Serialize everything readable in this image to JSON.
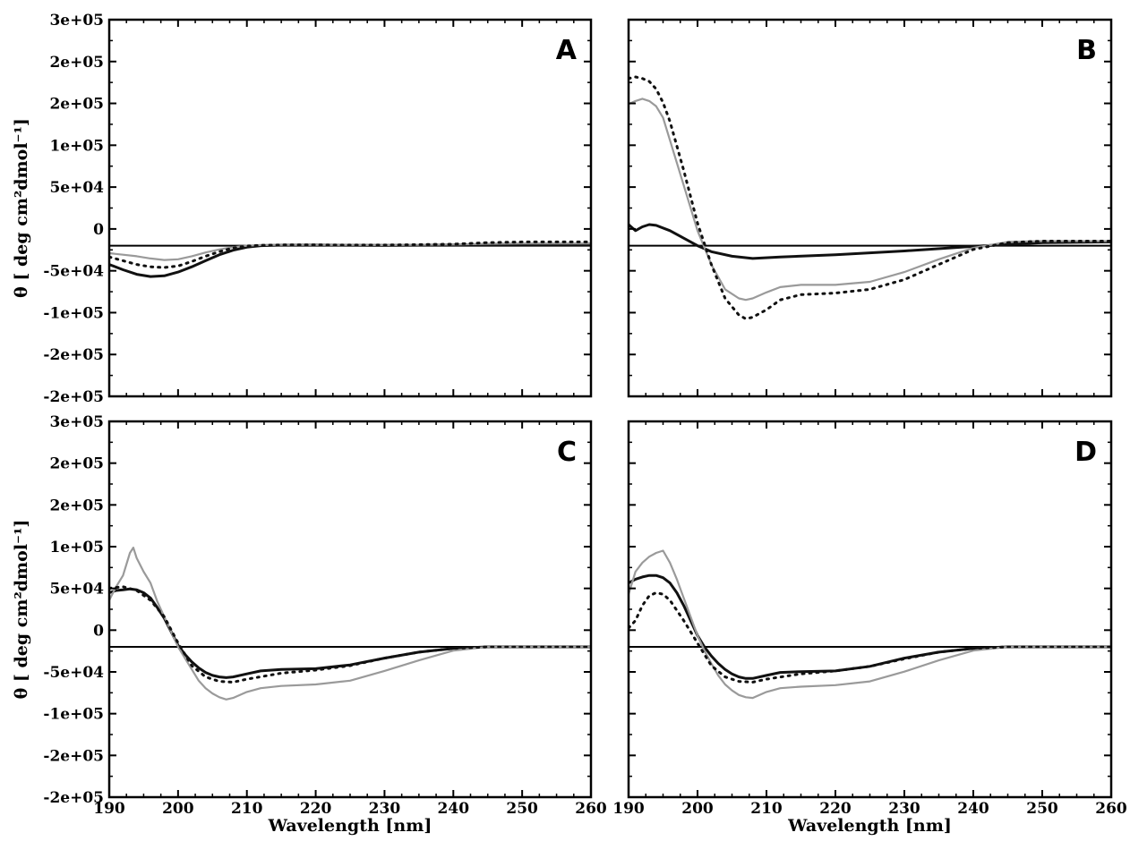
{
  "chart_data": [
    {
      "panel": "A",
      "type": "line",
      "xlim": [
        190,
        260
      ],
      "ylim": [
        -200000,
        300000
      ],
      "x_ticks": [
        "190",
        "200",
        "210",
        "220",
        "230",
        "240",
        "250",
        "260"
      ],
      "y_ticks": [
        "-2e+05",
        "-2e+05",
        "-1e+05",
        "-5e+04",
        "0",
        "5e+04",
        "1e+05",
        "2e+05",
        "2e+05",
        "3e+05"
      ],
      "xlabel": "",
      "ylabel": "θ [ deg cm²dmol⁻¹]",
      "series": [
        {
          "style": "solid-black",
          "x": [
            190,
            192,
            194,
            196,
            198,
            200,
            202,
            204,
            206,
            208,
            210,
            212,
            215,
            220,
            230,
            240,
            250,
            260
          ],
          "y": [
            -25000,
            -32000,
            -38000,
            -41000,
            -40000,
            -35000,
            -28000,
            -20000,
            -12000,
            -6000,
            -2000,
            0,
            800,
            1000,
            500,
            1000,
            1500,
            1200
          ]
        },
        {
          "style": "solid-gray",
          "x": [
            190,
            192,
            194,
            196,
            198,
            200,
            202,
            204,
            206,
            208,
            210,
            212,
            215,
            220,
            230,
            240,
            245,
            250,
            260
          ],
          "y": [
            -10000,
            -12000,
            -14000,
            -17000,
            -19000,
            -18000,
            -14000,
            -9000,
            -5000,
            -2000,
            0,
            800,
            1200,
            1200,
            800,
            1500,
            2500,
            3000,
            3000
          ]
        },
        {
          "style": "dotted-black",
          "x": [
            190,
            192,
            194,
            196,
            198,
            200,
            202,
            204,
            206,
            208,
            210,
            212,
            215,
            220,
            230,
            240,
            245,
            250,
            260
          ],
          "y": [
            -15000,
            -20000,
            -25000,
            -28000,
            -29000,
            -27000,
            -21000,
            -14000,
            -8000,
            -3000,
            -500,
            500,
            1000,
            1000,
            800,
            2000,
            4000,
            5000,
            5000
          ]
        }
      ]
    },
    {
      "panel": "B",
      "type": "line",
      "xlim": [
        190,
        260
      ],
      "ylim": [
        -200000,
        300000
      ],
      "x_ticks": [
        "190",
        "200",
        "210",
        "220",
        "230",
        "240",
        "250",
        "260"
      ],
      "y_ticks": [
        "-2e+05",
        "-2e+05",
        "-1e+05",
        "-5e+04",
        "0",
        "5e+04",
        "1e+05",
        "2e+05",
        "2e+05",
        "3e+05"
      ],
      "xlabel": "",
      "ylabel": "",
      "series": [
        {
          "style": "solid-black",
          "x": [
            190,
            191,
            192,
            193,
            194,
            196,
            198,
            200,
            202,
            205,
            208,
            212,
            220,
            230,
            240,
            250,
            260
          ],
          "y": [
            28000,
            20000,
            25000,
            28000,
            27000,
            20000,
            10000,
            0,
            -8000,
            -14000,
            -17000,
            -15000,
            -12000,
            -7000,
            -1000,
            4000,
            5000
          ]
        },
        {
          "style": "solid-gray",
          "x": [
            190,
            191,
            192,
            193,
            194,
            195,
            196,
            198,
            200,
            202,
            204,
            206,
            207,
            208,
            210,
            212,
            215,
            220,
            225,
            230,
            235,
            240,
            245,
            250,
            260
          ],
          "y": [
            188000,
            192000,
            195000,
            192000,
            185000,
            170000,
            140000,
            80000,
            20000,
            -25000,
            -58000,
            -70000,
            -72000,
            -70000,
            -62000,
            -55000,
            -52000,
            -52000,
            -48000,
            -35000,
            -18000,
            -3000,
            5000,
            6000,
            6000
          ]
        },
        {
          "style": "dotted-black",
          "x": [
            190,
            191,
            192,
            193,
            194,
            195,
            196,
            198,
            200,
            202,
            204,
            206,
            207,
            208,
            210,
            212,
            215,
            220,
            225,
            230,
            235,
            240,
            245,
            250,
            260
          ],
          "y": [
            222000,
            224000,
            222000,
            218000,
            208000,
            190000,
            165000,
            100000,
            30000,
            -25000,
            -70000,
            -92000,
            -97000,
            -95000,
            -85000,
            -72000,
            -65000,
            -63000,
            -58000,
            -45000,
            -25000,
            -5000,
            4000,
            6000,
            6000
          ]
        }
      ]
    },
    {
      "panel": "C",
      "type": "line",
      "xlim": [
        190,
        260
      ],
      "ylim": [
        -200000,
        300000
      ],
      "x_ticks": [
        "190",
        "200",
        "210",
        "220",
        "230",
        "240",
        "250",
        "260"
      ],
      "y_ticks": [
        "-2e+05",
        "-2e+05",
        "-1e+05",
        "-5e+04",
        "0",
        "5e+04",
        "1e+05",
        "2e+05",
        "2e+05",
        "3e+05"
      ],
      "xlabel": "Wavelength [nm]",
      "ylabel": "θ [ deg cm²dmol⁻¹]",
      "series": [
        {
          "style": "solid-black",
          "x": [
            190,
            191,
            192,
            193,
            194,
            195,
            196,
            197,
            198,
            199,
            200,
            201,
            202,
            203,
            204,
            205,
            206,
            207,
            208,
            210,
            212,
            215,
            220,
            225,
            230,
            235,
            240,
            245,
            250,
            260
          ],
          "y": [
            72000,
            75000,
            76000,
            77000,
            76000,
            72000,
            65000,
            52000,
            38000,
            20000,
            2000,
            -10000,
            -20000,
            -28000,
            -34000,
            -38000,
            -40000,
            -41000,
            -40000,
            -36000,
            -32000,
            -30000,
            -29000,
            -24000,
            -15000,
            -7000,
            -2000,
            0,
            0,
            0
          ]
        },
        {
          "style": "solid-gray",
          "x": [
            190,
            191,
            192,
            193,
            193.5,
            194,
            195,
            196,
            197,
            198,
            199,
            200,
            201,
            202,
            203,
            204,
            205,
            206,
            207,
            208,
            210,
            212,
            215,
            220,
            225,
            230,
            235,
            240,
            245,
            250,
            260
          ],
          "y": [
            62000,
            80000,
            95000,
            125000,
            132000,
            118000,
            100000,
            85000,
            60000,
            40000,
            20000,
            0,
            -15000,
            -30000,
            -45000,
            -55000,
            -62000,
            -67000,
            -70000,
            -68000,
            -60000,
            -55000,
            -52000,
            -50000,
            -45000,
            -32000,
            -18000,
            -5000,
            0,
            0,
            0
          ]
        },
        {
          "style": "dotted-black",
          "x": [
            190,
            192,
            194,
            196,
            198,
            200,
            202,
            204,
            206,
            208,
            210,
            215,
            220,
            225,
            230,
            235,
            240,
            245,
            250,
            260
          ],
          "y": [
            78000,
            80000,
            75000,
            62000,
            40000,
            5000,
            -25000,
            -40000,
            -46000,
            -47000,
            -43000,
            -35000,
            -31000,
            -25000,
            -15000,
            -7000,
            -2000,
            0,
            0,
            0
          ]
        }
      ]
    },
    {
      "panel": "D",
      "type": "line",
      "xlim": [
        190,
        260
      ],
      "ylim": [
        -200000,
        300000
      ],
      "x_ticks": [
        "190",
        "200",
        "210",
        "220",
        "230",
        "240",
        "250",
        "260"
      ],
      "y_ticks": [
        "-2e+05",
        "-2e+05",
        "-1e+05",
        "-5e+04",
        "0",
        "5e+04",
        "1e+05",
        "2e+05",
        "2e+05",
        "3e+05"
      ],
      "xlabel": "Wavelength [nm]",
      "ylabel": "",
      "series": [
        {
          "style": "solid-black",
          "x": [
            190,
            191,
            192,
            193,
            194,
            195,
            196,
            197,
            198,
            199,
            200,
            201,
            202,
            203,
            204,
            205,
            206,
            207,
            208,
            210,
            212,
            215,
            220,
            225,
            230,
            235,
            240,
            245,
            250,
            260
          ],
          "y": [
            85000,
            90000,
            93000,
            95000,
            95000,
            92000,
            85000,
            72000,
            55000,
            35000,
            15000,
            0,
            -12000,
            -22000,
            -30000,
            -36000,
            -40000,
            -42000,
            -42000,
            -38000,
            -34000,
            -33000,
            -32000,
            -26000,
            -15000,
            -7000,
            -2000,
            0,
            0,
            0
          ]
        },
        {
          "style": "solid-gray",
          "x": [
            190,
            191,
            192,
            193,
            194,
            195,
            196,
            197,
            198,
            199,
            200,
            201,
            202,
            203,
            204,
            205,
            206,
            207,
            208,
            210,
            212,
            215,
            220,
            225,
            230,
            235,
            240,
            245,
            250,
            260
          ],
          "y": [
            70000,
            100000,
            112000,
            120000,
            125000,
            128000,
            112000,
            90000,
            65000,
            40000,
            15000,
            -5000,
            -22000,
            -38000,
            -50000,
            -58000,
            -64000,
            -67000,
            -68000,
            -60000,
            -55000,
            -53000,
            -51000,
            -46000,
            -33000,
            -18000,
            -5000,
            0,
            0,
            0
          ]
        },
        {
          "style": "dotted-black",
          "x": [
            190,
            191,
            192,
            193,
            194,
            195,
            196,
            198,
            200,
            202,
            204,
            206,
            208,
            210,
            215,
            220,
            225,
            230,
            235,
            240,
            245,
            250,
            260
          ],
          "y": [
            25000,
            35000,
            55000,
            68000,
            72000,
            70000,
            62000,
            35000,
            5000,
            -25000,
            -40000,
            -46000,
            -47000,
            -43000,
            -36000,
            -32000,
            -26000,
            -16000,
            -7000,
            -2000,
            0,
            0,
            0
          ]
        }
      ]
    }
  ]
}
